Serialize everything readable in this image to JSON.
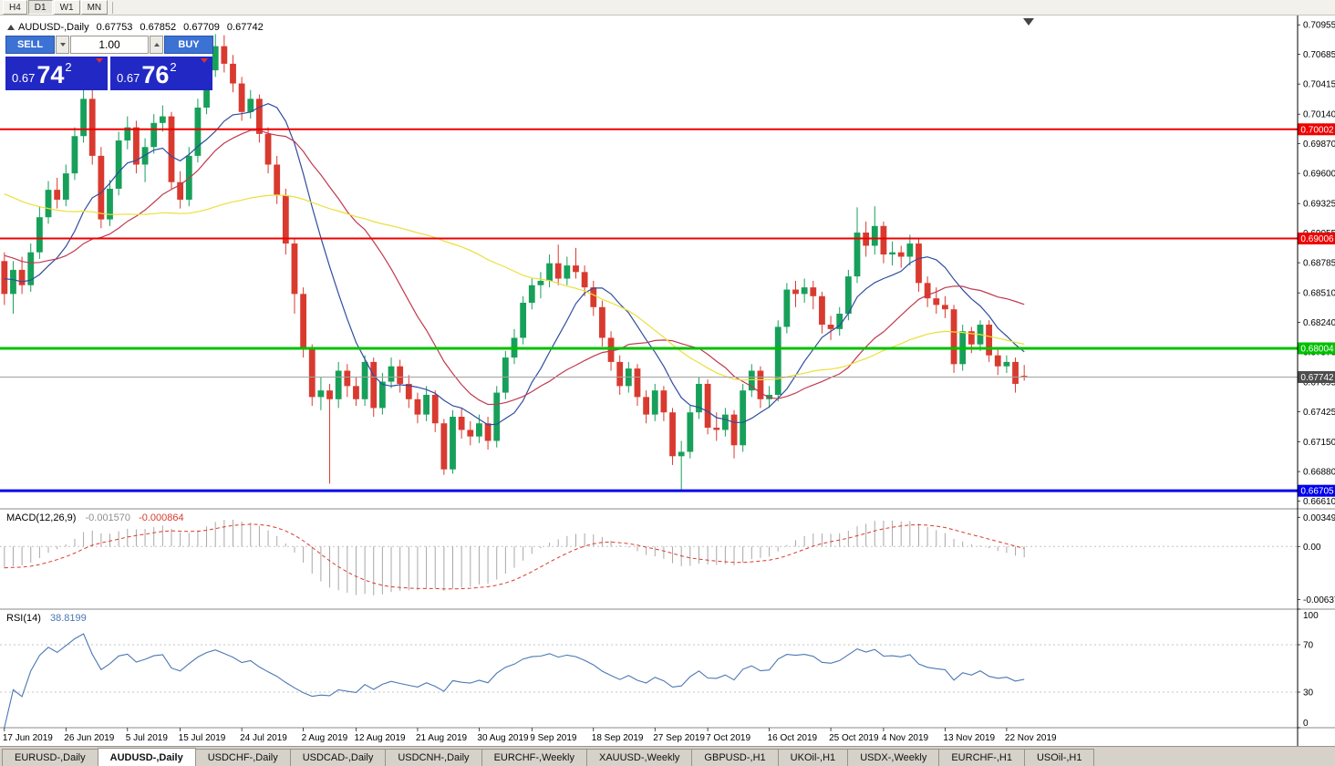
{
  "toolbar": {
    "timeframes": [
      {
        "label": "H4",
        "active": false
      },
      {
        "label": "D1",
        "active": true
      },
      {
        "label": "W1",
        "active": false
      },
      {
        "label": "MN",
        "active": false
      }
    ]
  },
  "chart_header": {
    "symbol": "AUDUSD-,Daily",
    "open": "0.67753",
    "high": "0.67852",
    "low": "0.67709",
    "close": "0.67742"
  },
  "trade_panel": {
    "sell_label": "SELL",
    "buy_label": "BUY",
    "volume": "1.00",
    "sell_price": {
      "prefix": "0.67",
      "big": "74",
      "sup": "2"
    },
    "buy_price": {
      "prefix": "0.67",
      "big": "76",
      "sup": "2"
    }
  },
  "indicators": {
    "macd": {
      "label": "MACD(12,26,9)",
      "value_main": "-0.001570",
      "value_signal": "-0.000864"
    },
    "rsi": {
      "label": "RSI(14)",
      "value": "38.8199"
    }
  },
  "bottom_tabs": {
    "active_index": 1,
    "items": [
      "EURUSD-,Daily",
      "AUDUSD-,Daily",
      "USDCHF-,Daily",
      "USDCAD-,Daily",
      "USDCNH-,Daily",
      "EURCHF-,Weekly",
      "XAUUSD-,Weekly",
      "GBPUSD-,H1",
      "UKOil-,H1",
      "USDX-,Weekly",
      "EURCHF-,H1",
      "USOil-,H1"
    ],
    "active_label": "AUDUSD-,Daily"
  },
  "chart_data": {
    "type": "candlestick",
    "title": "AUDUSD-,Daily",
    "ohlc": [
      [
        0.688,
        0.6888,
        0.684,
        0.685
      ],
      [
        0.685,
        0.688,
        0.6832,
        0.6872
      ],
      [
        0.6872,
        0.6884,
        0.685,
        0.6858
      ],
      [
        0.6858,
        0.6896,
        0.6852,
        0.6888
      ],
      [
        0.6888,
        0.693,
        0.6882,
        0.692
      ],
      [
        0.692,
        0.6953,
        0.6914,
        0.6945
      ],
      [
        0.6945,
        0.6956,
        0.6928,
        0.6936
      ],
      [
        0.6936,
        0.6968,
        0.693,
        0.696
      ],
      [
        0.696,
        0.7002,
        0.6954,
        0.6994
      ],
      [
        0.6994,
        0.7036,
        0.6988,
        0.7028
      ],
      [
        0.7028,
        0.704,
        0.6968,
        0.6976
      ],
      [
        0.6976,
        0.6984,
        0.691,
        0.6918
      ],
      [
        0.6918,
        0.6954,
        0.6912,
        0.6946
      ],
      [
        0.6946,
        0.6998,
        0.694,
        0.699
      ],
      [
        0.699,
        0.7012,
        0.6982,
        0.7002
      ],
      [
        0.7002,
        0.7008,
        0.696,
        0.6968
      ],
      [
        0.6968,
        0.6992,
        0.6952,
        0.6984
      ],
      [
        0.6984,
        0.7014,
        0.6978,
        0.7006
      ],
      [
        0.7006,
        0.7022,
        0.6998,
        0.7012
      ],
      [
        0.7012,
        0.7016,
        0.6946,
        0.6952
      ],
      [
        0.6952,
        0.6962,
        0.6928,
        0.6936
      ],
      [
        0.6936,
        0.6984,
        0.693,
        0.6976
      ],
      [
        0.6976,
        0.7028,
        0.697,
        0.702
      ],
      [
        0.702,
        0.7062,
        0.7014,
        0.7054
      ],
      [
        0.7054,
        0.7087,
        0.7048,
        0.7076
      ],
      [
        0.7076,
        0.7086,
        0.7052,
        0.706
      ],
      [
        0.706,
        0.7068,
        0.7034,
        0.7042
      ],
      [
        0.7042,
        0.7048,
        0.7008,
        0.7016
      ],
      [
        0.7016,
        0.7036,
        0.701,
        0.7028
      ],
      [
        0.7028,
        0.7032,
        0.6988,
        0.6996
      ],
      [
        0.6996,
        0.7002,
        0.696,
        0.6968
      ],
      [
        0.6968,
        0.6976,
        0.6932,
        0.694
      ],
      [
        0.694,
        0.6946,
        0.6886,
        0.6896
      ],
      [
        0.6896,
        0.69,
        0.6832,
        0.685
      ],
      [
        0.685,
        0.6856,
        0.6792,
        0.68
      ],
      [
        0.68,
        0.6804,
        0.6748,
        0.6756
      ],
      [
        0.6756,
        0.6774,
        0.6744,
        0.6762
      ],
      [
        0.6762,
        0.6768,
        0.6677,
        0.6754
      ],
      [
        0.6754,
        0.6788,
        0.6746,
        0.678
      ],
      [
        0.678,
        0.6786,
        0.6756,
        0.6766
      ],
      [
        0.6766,
        0.6774,
        0.6748,
        0.6754
      ],
      [
        0.6754,
        0.6794,
        0.6748,
        0.6788
      ],
      [
        0.6788,
        0.6792,
        0.6738,
        0.6746
      ],
      [
        0.6746,
        0.6778,
        0.674,
        0.677
      ],
      [
        0.677,
        0.6792,
        0.6764,
        0.6784
      ],
      [
        0.6784,
        0.679,
        0.676,
        0.6768
      ],
      [
        0.6768,
        0.6776,
        0.6746,
        0.6754
      ],
      [
        0.6754,
        0.676,
        0.6732,
        0.674
      ],
      [
        0.674,
        0.6766,
        0.6734,
        0.6758
      ],
      [
        0.6758,
        0.6762,
        0.6724,
        0.6732
      ],
      [
        0.6732,
        0.6736,
        0.6685,
        0.669
      ],
      [
        0.669,
        0.6744,
        0.6686,
        0.6738
      ],
      [
        0.6738,
        0.6746,
        0.6718,
        0.6726
      ],
      [
        0.6726,
        0.6734,
        0.6712,
        0.672
      ],
      [
        0.672,
        0.674,
        0.6714,
        0.6732
      ],
      [
        0.6732,
        0.6738,
        0.6708,
        0.6716
      ],
      [
        0.6716,
        0.6766,
        0.671,
        0.676
      ],
      [
        0.676,
        0.6798,
        0.6754,
        0.6792
      ],
      [
        0.6792,
        0.6818,
        0.6786,
        0.681
      ],
      [
        0.681,
        0.6848,
        0.6804,
        0.6842
      ],
      [
        0.6842,
        0.6864,
        0.6836,
        0.6858
      ],
      [
        0.6858,
        0.687,
        0.6846,
        0.6862
      ],
      [
        0.6862,
        0.6886,
        0.6856,
        0.6878
      ],
      [
        0.6878,
        0.6895,
        0.6858,
        0.6864
      ],
      [
        0.6864,
        0.6884,
        0.6858,
        0.6876
      ],
      [
        0.6876,
        0.6892,
        0.6864,
        0.687
      ],
      [
        0.687,
        0.6876,
        0.6848,
        0.6856
      ],
      [
        0.6856,
        0.6862,
        0.683,
        0.6838
      ],
      [
        0.6838,
        0.6844,
        0.6802,
        0.681
      ],
      [
        0.681,
        0.6816,
        0.678,
        0.6788
      ],
      [
        0.6788,
        0.6794,
        0.6758,
        0.6766
      ],
      [
        0.6766,
        0.6788,
        0.676,
        0.6782
      ],
      [
        0.6782,
        0.6786,
        0.6748,
        0.6756
      ],
      [
        0.6756,
        0.6762,
        0.6732,
        0.674
      ],
      [
        0.674,
        0.6768,
        0.6734,
        0.6762
      ],
      [
        0.6762,
        0.6766,
        0.6734,
        0.6742
      ],
      [
        0.6742,
        0.6746,
        0.6694,
        0.6702
      ],
      [
        0.6702,
        0.6716,
        0.6671,
        0.6706
      ],
      [
        0.6706,
        0.6748,
        0.67,
        0.6742
      ],
      [
        0.6742,
        0.6774,
        0.6736,
        0.6768
      ],
      [
        0.6768,
        0.6772,
        0.6722,
        0.6728
      ],
      [
        0.6728,
        0.6742,
        0.6716,
        0.6726
      ],
      [
        0.6726,
        0.6746,
        0.672,
        0.674
      ],
      [
        0.674,
        0.6744,
        0.67,
        0.6712
      ],
      [
        0.6712,
        0.6768,
        0.6706,
        0.6762
      ],
      [
        0.6762,
        0.6786,
        0.6756,
        0.678
      ],
      [
        0.678,
        0.6784,
        0.6746,
        0.6754
      ],
      [
        0.6754,
        0.6766,
        0.6746,
        0.6758
      ],
      [
        0.6758,
        0.6826,
        0.6752,
        0.682
      ],
      [
        0.682,
        0.686,
        0.6814,
        0.6854
      ],
      [
        0.6854,
        0.6862,
        0.6838,
        0.685
      ],
      [
        0.685,
        0.6864,
        0.6842,
        0.6856
      ],
      [
        0.6856,
        0.6862,
        0.6836,
        0.6848
      ],
      [
        0.6848,
        0.6852,
        0.6814,
        0.6822
      ],
      [
        0.6822,
        0.683,
        0.6808,
        0.6818
      ],
      [
        0.6818,
        0.6838,
        0.6812,
        0.6832
      ],
      [
        0.6832,
        0.6872,
        0.6826,
        0.6866
      ],
      [
        0.6866,
        0.6929,
        0.686,
        0.6906
      ],
      [
        0.6906,
        0.6916,
        0.6884,
        0.6894
      ],
      [
        0.6894,
        0.693,
        0.6886,
        0.6912
      ],
      [
        0.6912,
        0.6916,
        0.6878,
        0.6886
      ],
      [
        0.6886,
        0.6898,
        0.6876,
        0.6888
      ],
      [
        0.6888,
        0.6894,
        0.6874,
        0.6884
      ],
      [
        0.6884,
        0.6904,
        0.6876,
        0.6896
      ],
      [
        0.6896,
        0.69,
        0.6852,
        0.686
      ],
      [
        0.686,
        0.6866,
        0.6838,
        0.6846
      ],
      [
        0.6846,
        0.6856,
        0.6832,
        0.684
      ],
      [
        0.684,
        0.6848,
        0.6828,
        0.6836
      ],
      [
        0.6836,
        0.684,
        0.6778,
        0.6786
      ],
      [
        0.6786,
        0.6822,
        0.678,
        0.6816
      ],
      [
        0.6816,
        0.682,
        0.6796,
        0.6804
      ],
      [
        0.6804,
        0.6826,
        0.6798,
        0.6822
      ],
      [
        0.6822,
        0.6826,
        0.6788,
        0.6794
      ],
      [
        0.6794,
        0.68,
        0.6776,
        0.6784
      ],
      [
        0.6784,
        0.6794,
        0.6778,
        0.6788
      ],
      [
        0.6788,
        0.6792,
        0.676,
        0.6768
      ],
      [
        0.67753,
        0.67852,
        0.67709,
        0.67742
      ]
    ],
    "date_labels": [
      {
        "i": 0,
        "label": "17 Jun 2019"
      },
      {
        "i": 7,
        "label": "26 Jun 2019"
      },
      {
        "i": 14,
        "label": "5 Jul 2019"
      },
      {
        "i": 20,
        "label": "15 Jul 2019"
      },
      {
        "i": 27,
        "label": "24 Jul 2019"
      },
      {
        "i": 34,
        "label": "2 Aug 2019"
      },
      {
        "i": 40,
        "label": "12 Aug 2019"
      },
      {
        "i": 47,
        "label": "21 Aug 2019"
      },
      {
        "i": 54,
        "label": "30 Aug 2019"
      },
      {
        "i": 60,
        "label": "9 Sep 2019"
      },
      {
        "i": 67,
        "label": "18 Sep 2019"
      },
      {
        "i": 74,
        "label": "27 Sep 2019"
      },
      {
        "i": 80,
        "label": "7 Oct 2019"
      },
      {
        "i": 87,
        "label": "16 Oct 2019"
      },
      {
        "i": 94,
        "label": "25 Oct 2019"
      },
      {
        "i": 100,
        "label": "4 Nov 2019"
      },
      {
        "i": 107,
        "label": "13 Nov 2019"
      },
      {
        "i": 114,
        "label": "22 Nov 2019"
      }
    ],
    "y_ticks": [
      0.70955,
      0.70685,
      0.70415,
      0.7014,
      0.6987,
      0.696,
      0.69325,
      0.69055,
      0.68785,
      0.6851,
      0.6824,
      0.6797,
      0.67695,
      0.67425,
      0.6715,
      0.6688,
      0.6661
    ],
    "price_range": [
      0.6654,
      0.7104
    ],
    "hlines": [
      {
        "value": 0.70002,
        "label": "0.70002",
        "color": "#ee0000",
        "width": 2
      },
      {
        "value": 0.69006,
        "label": "0.69006",
        "color": "#ee0000",
        "width": 2
      },
      {
        "value": 0.68004,
        "label": "0.68004",
        "color": "#00c000",
        "width": 3
      },
      {
        "value": 0.66705,
        "label": "0.66705",
        "color": "#0000ee",
        "width": 3
      }
    ],
    "current_price": {
      "value": 0.67742,
      "label": "0.67742",
      "line_color": "#a0a0a0",
      "tag_color": "#4d4d4d"
    },
    "moving_averages": [
      {
        "period": 10,
        "color": "#2f4da0"
      },
      {
        "period": 21,
        "color": "#c03a50"
      },
      {
        "period": 50,
        "color": "#ecdf3a"
      }
    ],
    "macd": {
      "params": [
        12,
        26,
        9
      ],
      "range": [
        -0.0075,
        0.0045
      ],
      "ticks": [
        {
          "v": 0.00349,
          "label": "0.00349"
        },
        {
          "v": 0,
          "label": "0.00"
        },
        {
          "v": -0.00637,
          "label": "-0.00637"
        }
      ],
      "hist_color": "#a8a8a8",
      "signal_color": "#d93a2f"
    },
    "rsi": {
      "period": 14,
      "levels": [
        70,
        30
      ],
      "ticks": [
        {
          "v": 100,
          "label": "100"
        },
        {
          "v": 70,
          "label": "70"
        },
        {
          "v": 30,
          "label": "30"
        },
        {
          "v": 0,
          "label": "0"
        }
      ],
      "color": "#4a77b4"
    },
    "colors": {
      "bull": "#17a05a",
      "bear": "#d93a2f"
    }
  }
}
